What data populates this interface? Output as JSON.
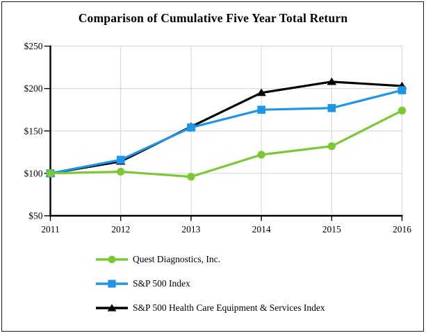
{
  "title": "Comparison of Cumulative Five Year Total Return",
  "colors": {
    "quest_green": "#7CC832",
    "sp500_blue": "#1E96E8",
    "healthcare_black": "#000000",
    "grid": "#DBDBDB",
    "axis": "#000000",
    "background": "#FFFFFF"
  },
  "chart_data": {
    "type": "line",
    "title": "Comparison of Cumulative Five Year Total Return",
    "x": [
      2011,
      2012,
      2013,
      2014,
      2015,
      2016
    ],
    "x_tick_labels": [
      "2011",
      "2012",
      "2013",
      "2014",
      "2015",
      "2016"
    ],
    "y_tick_labels": [
      "$50",
      "$100",
      "$150",
      "$200",
      "$250"
    ],
    "ylim": [
      50,
      250
    ],
    "ytick_step": 50,
    "grid": true,
    "legend_position": "bottom-left",
    "series": [
      {
        "name": "S&P 500 Health Care Equipment & Services Index",
        "marker": "triangle",
        "color": "#000000",
        "values": [
          100,
          114,
          155,
          195,
          208,
          203
        ]
      },
      {
        "name": "S&P 500 Index",
        "marker": "square",
        "color": "#1E96E8",
        "values": [
          100,
          116,
          154,
          175,
          177,
          198
        ]
      },
      {
        "name": "Quest Diagnostics, Inc.",
        "marker": "circle",
        "color": "#7CC832",
        "values": [
          100,
          102,
          96,
          122,
          132,
          174
        ]
      }
    ],
    "legend_order": [
      2,
      1,
      0
    ]
  }
}
